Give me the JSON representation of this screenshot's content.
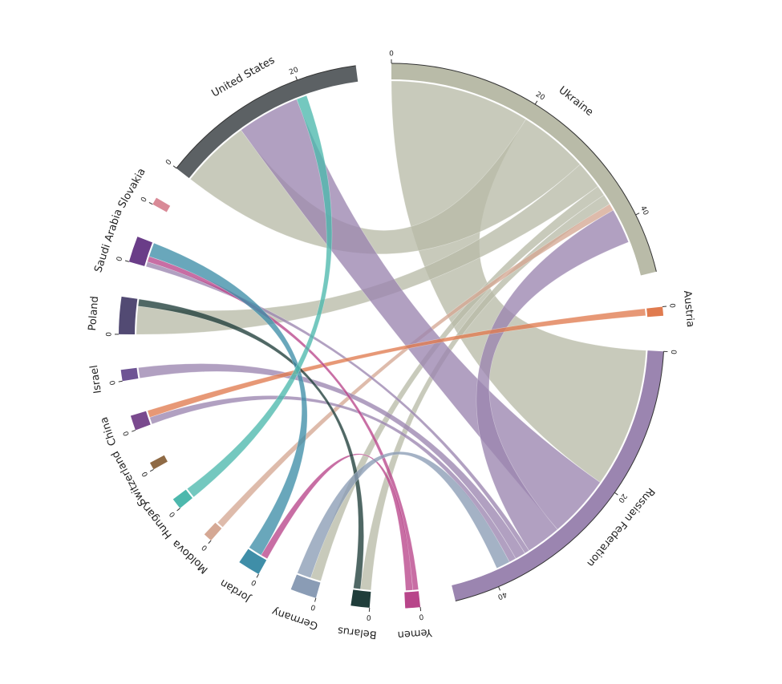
{
  "chart_data": {
    "type": "chord",
    "groups": [
      {
        "name": "Ukraine",
        "value": 48,
        "color": "#b9bba8",
        "ticks": [
          0,
          20,
          40
        ]
      },
      {
        "name": "Austria",
        "value": 1.2,
        "color": "#e07b4f",
        "ticks": [
          0
        ]
      },
      {
        "name": "Russian Federation",
        "value": 46,
        "color": "#9b85b0",
        "ticks": [
          0,
          20,
          40
        ]
      },
      {
        "name": "Yemen",
        "value": 2,
        "color": "#b8458a",
        "ticks": [
          0
        ]
      },
      {
        "name": "Belarus",
        "value": 2.5,
        "color": "#1f3d3a",
        "ticks": [
          0
        ]
      },
      {
        "name": "Germany",
        "value": 3.5,
        "color": "#8a9cb5",
        "ticks": [
          0
        ]
      },
      {
        "name": "Jordan",
        "value": 3,
        "color": "#3f8ea8",
        "ticks": [
          0
        ]
      },
      {
        "name": "Moldova",
        "value": 1.2,
        "color": "#d5a894",
        "ticks": [
          0
        ]
      },
      {
        "name": "Hungary",
        "value": 1.5,
        "color": "#4db8ad",
        "ticks": [
          0
        ]
      },
      {
        "name": "Switzerland",
        "value": 1,
        "color": "#8f6a45",
        "ticks": [
          0
        ]
      },
      {
        "name": "China",
        "value": 2,
        "color": "#7a4a8e",
        "ticks": [
          0
        ]
      },
      {
        "name": "Israel",
        "value": 1.5,
        "color": "#6e5494",
        "ticks": [
          0
        ]
      },
      {
        "name": "Poland",
        "value": 5,
        "color": "#524a73",
        "ticks": [
          0
        ]
      },
      {
        "name": "Saudi Arabia",
        "value": 3.5,
        "color": "#6a3d88",
        "ticks": [
          0
        ]
      },
      {
        "name": "Slovakia",
        "value": 1,
        "color": "#d98a97",
        "ticks": [
          0
        ]
      },
      {
        "name": "United States",
        "value": 28,
        "color": "#5c6164",
        "ticks": [
          0,
          20
        ]
      }
    ],
    "chords": [
      {
        "source": 0,
        "target": 2,
        "value": 20
      },
      {
        "source": 0,
        "target": 15,
        "value": 10
      },
      {
        "source": 0,
        "target": 12,
        "value": 4
      },
      {
        "source": 0,
        "target": 5,
        "value": 1.5
      },
      {
        "source": 0,
        "target": 4,
        "value": 1.5
      },
      {
        "source": 7,
        "target": 0,
        "value": 1
      },
      {
        "source": 2,
        "target": 15,
        "value": 9
      },
      {
        "source": 2,
        "target": 0,
        "value": 5
      },
      {
        "source": 2,
        "target": 13,
        "value": 0.7
      },
      {
        "source": 2,
        "target": 11,
        "value": 1.5
      },
      {
        "source": 2,
        "target": 10,
        "value": 1
      },
      {
        "source": 1,
        "target": 10,
        "value": 1
      },
      {
        "source": 3,
        "target": 13,
        "value": 0.8
      },
      {
        "source": 3,
        "target": 6,
        "value": 1
      },
      {
        "source": 4,
        "target": 12,
        "value": 1
      },
      {
        "source": 5,
        "target": 2,
        "value": 2
      },
      {
        "source": 6,
        "target": 13,
        "value": 2
      },
      {
        "source": 8,
        "target": 15,
        "value": 1.5
      }
    ]
  }
}
